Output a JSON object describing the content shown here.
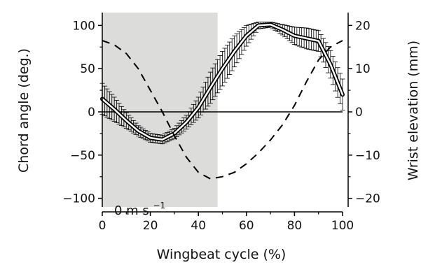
{
  "chart_data": {
    "type": "line",
    "title": "",
    "xlabel": "Wingbeat cycle (%)",
    "ylabel_left": "Chord angle (deg.)",
    "ylabel_right": "Wrist elevation (mm)",
    "xlim": [
      0,
      100
    ],
    "ylim_left": [
      -110,
      110
    ],
    "ylim_right": [
      -22,
      22
    ],
    "x_ticks": [
      0,
      20,
      40,
      60,
      80,
      100
    ],
    "y_left_ticks": [
      -100,
      -50,
      0,
      50,
      100
    ],
    "y_right_ticks": [
      -20,
      -10,
      0,
      10,
      20
    ],
    "grid": false,
    "shaded_region": {
      "x_start": 0,
      "x_end": 48,
      "color": "#dcdcdb"
    },
    "annotation": "0 m s",
    "annotation_sup": "−1",
    "zero_line": true,
    "series": [
      {
        "axis": "left",
        "style": "solid-with-error-bars",
        "x": [
          0,
          5,
          10,
          15,
          20,
          25,
          30,
          35,
          40,
          45,
          50,
          55,
          60,
          65,
          70,
          75,
          80,
          85,
          90,
          95,
          100
        ],
        "y": [
          15,
          3,
          -10,
          -22,
          -30,
          -32,
          -25,
          -12,
          5,
          28,
          50,
          70,
          88,
          100,
          101,
          95,
          88,
          85,
          82,
          55,
          20
        ],
        "err": [
          18,
          14,
          9,
          6,
          5,
          5,
          6,
          8,
          12,
          18,
          20,
          18,
          12,
          4,
          3,
          6,
          10,
          12,
          12,
          16,
          18
        ]
      },
      {
        "axis": "right",
        "style": "dashed",
        "x": [
          0,
          5,
          10,
          15,
          20,
          25,
          30,
          35,
          40,
          45,
          50,
          55,
          60,
          65,
          70,
          75,
          80,
          85,
          90,
          95,
          100
        ],
        "y": [
          16.5,
          15.5,
          13.5,
          10,
          5,
          0,
          -5.5,
          -10.5,
          -14,
          -15.5,
          -15,
          -14,
          -12,
          -9.5,
          -6.5,
          -3,
          1.5,
          7,
          12,
          15,
          16.5
        ]
      }
    ]
  }
}
